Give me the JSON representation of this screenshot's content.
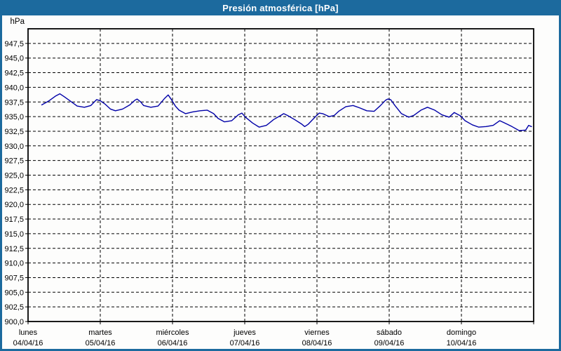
{
  "window": {
    "title": "Presión atmosférica [hPa]"
  },
  "colors": {
    "frame_blue": "#1c6a9e",
    "title_text": "#ffffff",
    "line": "#0000a8",
    "grid": "#000000",
    "axis_text": "#000000",
    "plot_bg": "#fdfdfc"
  },
  "chart_data": {
    "type": "line",
    "title": "Presión atmosférica [hPa]",
    "grid": "dashed",
    "legend": "none",
    "y_axis": {
      "unit_label": "hPa",
      "min": 900.0,
      "max": 950.0,
      "tick_step": 2.5,
      "tick_labels": [
        "947,5",
        "945,0",
        "942,5",
        "940,0",
        "937,5",
        "935,0",
        "932,5",
        "930,0",
        "927,5",
        "925,0",
        "922,5",
        "920,0",
        "917,5",
        "915,0",
        "912,5",
        "910,0",
        "907,5",
        "905,0",
        "902,5",
        "900,0"
      ],
      "tick_values": [
        947.5,
        945.0,
        942.5,
        940.0,
        937.5,
        935.0,
        932.5,
        930.0,
        927.5,
        925.0,
        922.5,
        920.0,
        917.5,
        915.0,
        912.5,
        910.0,
        907.5,
        905.0,
        902.5,
        900.0
      ]
    },
    "x_axis": {
      "span_days": 7.0,
      "days": [
        {
          "name": "lunes",
          "date": "04/04/16"
        },
        {
          "name": "martes",
          "date": "05/04/16"
        },
        {
          "name": "miércoles",
          "date": "06/04/16"
        },
        {
          "name": "jueves",
          "date": "07/04/16"
        },
        {
          "name": "viernes",
          "date": "08/04/16"
        },
        {
          "name": "sábado",
          "date": "09/04/16"
        },
        {
          "name": "domingo",
          "date": "10/04/16"
        }
      ]
    },
    "series": [
      {
        "name": "Presión atmosférica",
        "unit": "hPa",
        "points": [
          [
            0.19,
            937.0
          ],
          [
            0.29,
            937.7
          ],
          [
            0.38,
            938.5
          ],
          [
            0.44,
            938.9
          ],
          [
            0.5,
            938.4
          ],
          [
            0.58,
            937.7
          ],
          [
            0.68,
            936.8
          ],
          [
            0.78,
            936.6
          ],
          [
            0.87,
            936.9
          ],
          [
            0.95,
            937.9
          ],
          [
            1.0,
            937.7
          ],
          [
            1.07,
            937.1
          ],
          [
            1.14,
            936.3
          ],
          [
            1.21,
            936.0
          ],
          [
            1.31,
            936.3
          ],
          [
            1.41,
            937.0
          ],
          [
            1.48,
            937.8
          ],
          [
            1.51,
            938.0
          ],
          [
            1.56,
            937.5
          ],
          [
            1.6,
            936.9
          ],
          [
            1.7,
            936.6
          ],
          [
            1.8,
            936.8
          ],
          [
            1.89,
            938.1
          ],
          [
            1.94,
            938.7
          ],
          [
            1.99,
            937.8
          ],
          [
            2.04,
            936.8
          ],
          [
            2.09,
            936.1
          ],
          [
            2.18,
            935.5
          ],
          [
            2.28,
            935.8
          ],
          [
            2.38,
            936.0
          ],
          [
            2.48,
            936.1
          ],
          [
            2.57,
            935.5
          ],
          [
            2.63,
            934.7
          ],
          [
            2.72,
            934.1
          ],
          [
            2.82,
            934.3
          ],
          [
            2.91,
            935.3
          ],
          [
            2.96,
            935.6
          ],
          [
            3.01,
            934.9
          ],
          [
            3.11,
            933.9
          ],
          [
            3.2,
            933.2
          ],
          [
            3.3,
            933.5
          ],
          [
            3.4,
            934.5
          ],
          [
            3.5,
            935.2
          ],
          [
            3.54,
            935.5
          ],
          [
            3.59,
            935.2
          ],
          [
            3.69,
            934.5
          ],
          [
            3.79,
            933.7
          ],
          [
            3.83,
            933.3
          ],
          [
            3.88,
            933.7
          ],
          [
            3.98,
            935.0
          ],
          [
            4.03,
            935.6
          ],
          [
            4.08,
            935.5
          ],
          [
            4.17,
            935.0
          ],
          [
            4.24,
            935.2
          ],
          [
            4.3,
            935.9
          ],
          [
            4.4,
            936.7
          ],
          [
            4.5,
            936.9
          ],
          [
            4.59,
            936.5
          ],
          [
            4.69,
            936.0
          ],
          [
            4.79,
            935.9
          ],
          [
            4.88,
            936.9
          ],
          [
            4.95,
            937.8
          ],
          [
            4.98,
            938.0
          ],
          [
            5.02,
            937.9
          ],
          [
            5.08,
            936.9
          ],
          [
            5.17,
            935.5
          ],
          [
            5.27,
            934.9
          ],
          [
            5.34,
            935.2
          ],
          [
            5.44,
            936.1
          ],
          [
            5.53,
            936.6
          ],
          [
            5.63,
            936.1
          ],
          [
            5.73,
            935.3
          ],
          [
            5.83,
            934.9
          ],
          [
            5.9,
            935.7
          ],
          [
            5.99,
            935.1
          ],
          [
            6.05,
            934.3
          ],
          [
            6.15,
            933.6
          ],
          [
            6.24,
            933.2
          ],
          [
            6.34,
            933.3
          ],
          [
            6.44,
            933.5
          ],
          [
            6.53,
            934.3
          ],
          [
            6.6,
            933.9
          ],
          [
            6.7,
            933.3
          ],
          [
            6.8,
            932.6
          ],
          [
            6.89,
            932.7
          ],
          [
            6.93,
            933.5
          ],
          [
            6.97,
            933.3
          ]
        ]
      }
    ]
  }
}
